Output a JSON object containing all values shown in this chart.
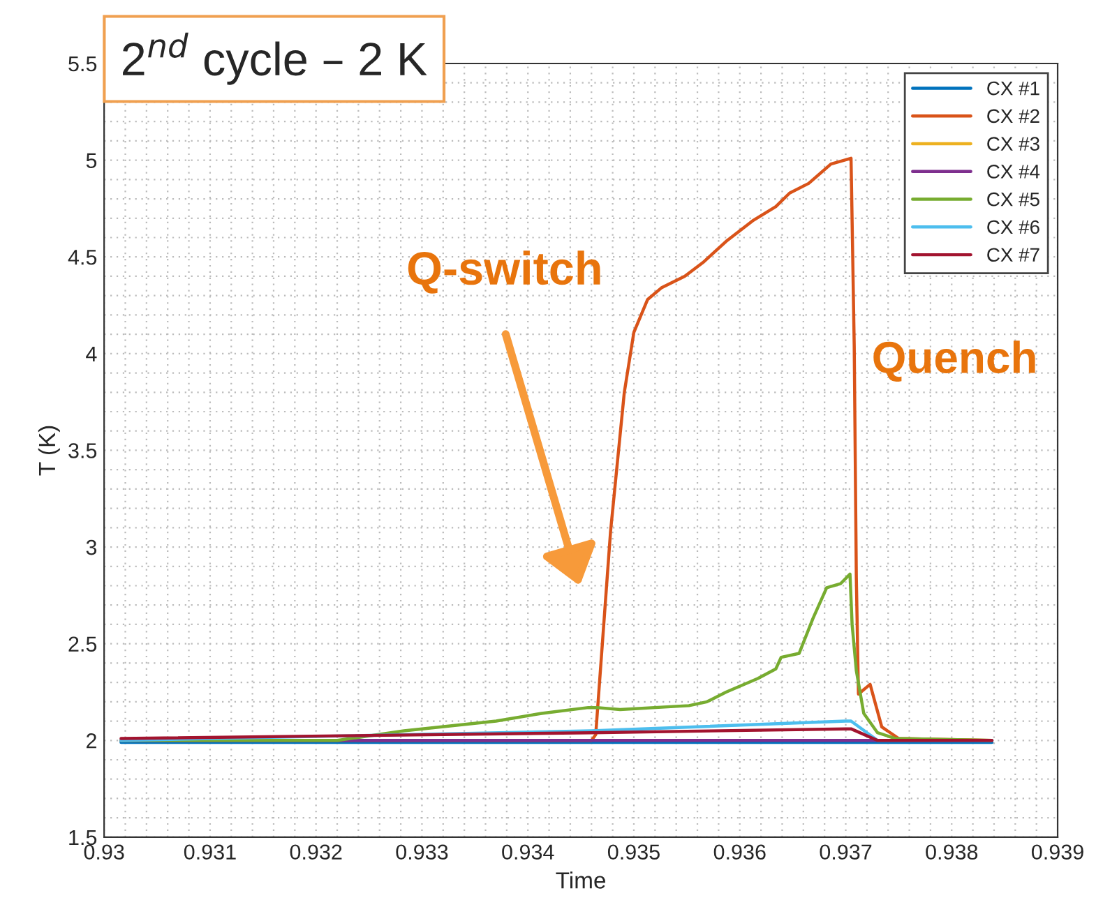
{
  "chart_data": {
    "type": "line",
    "xlabel": "Time",
    "ylabel": "T (K)",
    "xlim": [
      0.93,
      0.939
    ],
    "xticks": [
      0.93,
      0.931,
      0.932,
      0.933,
      0.934,
      0.935,
      0.936,
      0.937,
      0.938,
      0.939
    ],
    "ylim": [
      1.5,
      5.5
    ],
    "yticks": [
      1.5,
      2,
      2.5,
      3,
      3.5,
      4,
      4.5,
      5,
      5.5
    ],
    "grid": true,
    "legend": "top right",
    "line_style": "solid",
    "marker": "none",
    "annotations": [
      "2$^{nd}$ cycle – 2 K",
      "Q-switch",
      "Quench"
    ],
    "series": [
      {
        "name": "CX #1",
        "color": "#0072bd",
        "x": [
          0.93016,
          0.935,
          0.9371,
          0.93838
        ],
        "values": [
          1.99,
          1.99,
          1.99,
          1.99
        ]
      },
      {
        "name": "CX #2",
        "color": "#d95319",
        "x": [
          0.93016,
          0.9346,
          0.93464,
          0.93478,
          0.93491,
          0.935,
          0.93513,
          0.93526,
          0.93548,
          0.93565,
          0.93587,
          0.93613,
          0.93634,
          0.93647,
          0.93665,
          0.93686,
          0.93705,
          0.93708,
          0.9371,
          0.93712,
          0.93723,
          0.93734,
          0.9375,
          0.93838
        ],
        "values": [
          2.0,
          2.0,
          2.03,
          3.08,
          3.8,
          4.11,
          4.28,
          4.34,
          4.4,
          4.47,
          4.58,
          4.69,
          4.76,
          4.83,
          4.88,
          4.98,
          5.01,
          4.04,
          2.84,
          2.24,
          2.29,
          2.07,
          2.01,
          2.0
        ]
      },
      {
        "name": "CX #3",
        "color": "#edb120"
      },
      {
        "name": "CX #4",
        "color": "#7e2f8e",
        "x": [
          0.93016,
          0.935,
          0.9371,
          0.93838
        ],
        "values": [
          2.0,
          2.0,
          2.0,
          2.0
        ]
      },
      {
        "name": "CX #5",
        "color": "#77ac30",
        "x": [
          0.93016,
          0.9322,
          0.93283,
          0.9337,
          0.93413,
          0.93457,
          0.93465,
          0.93487,
          0.93552,
          0.93569,
          0.93587,
          0.93617,
          0.93634,
          0.93639,
          0.93656,
          0.93669,
          0.93682,
          0.93695,
          0.93704,
          0.93706,
          0.9371,
          0.93717,
          0.9373,
          0.93747,
          0.93838
        ],
        "values": [
          2.0,
          2.0,
          2.05,
          2.1,
          2.14,
          2.17,
          2.17,
          2.16,
          2.18,
          2.2,
          2.25,
          2.32,
          2.37,
          2.43,
          2.45,
          2.63,
          2.79,
          2.81,
          2.86,
          2.6,
          2.36,
          2.14,
          2.04,
          2.01,
          2.0
        ]
      },
      {
        "name": "CX #6",
        "color": "#4dbeee",
        "x": [
          0.93016,
          0.9346,
          0.937,
          0.93705,
          0.9373,
          0.93838
        ],
        "values": [
          2.0,
          2.05,
          2.1,
          2.1,
          2.0,
          2.0
        ]
      },
      {
        "name": "CX #7",
        "color": "#a2142f",
        "x": [
          0.93016,
          0.9346,
          0.937,
          0.93705,
          0.9373,
          0.93838
        ],
        "values": [
          2.01,
          2.04,
          2.06,
          2.06,
          2.0,
          2.0
        ]
      }
    ]
  }
}
